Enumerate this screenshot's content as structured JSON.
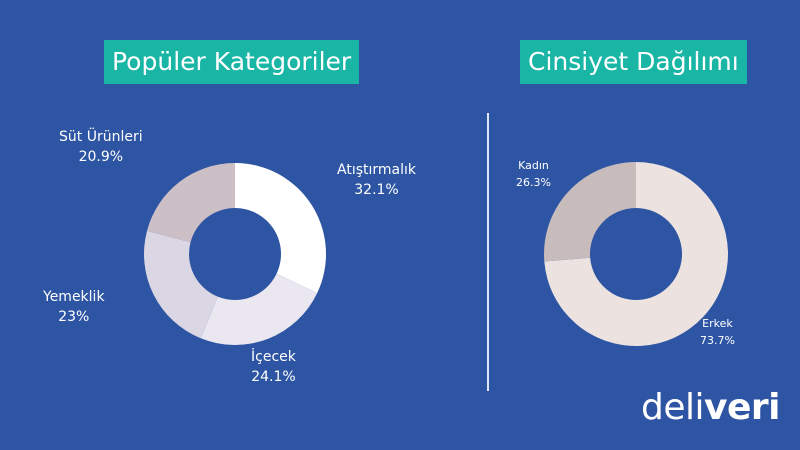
{
  "chart_data": [
    {
      "type": "pie",
      "donut": true,
      "title": "Popüler Kategoriler",
      "slices": [
        {
          "label": "Atıştırmalık",
          "value": 32.1,
          "value_text": "32.1%",
          "color": "#ffffff"
        },
        {
          "label": "İçecek",
          "value": 24.1,
          "value_text": "24.1%",
          "color": "#ebe7f0"
        },
        {
          "label": "Yemeklik",
          "value": 23.0,
          "value_text": "23%",
          "color": "#dad6e3"
        },
        {
          "label": "Süt Ürünleri",
          "value": 20.9,
          "value_text": "20.9%",
          "color": "#cdbfc6"
        }
      ]
    },
    {
      "type": "pie",
      "donut": true,
      "title": "Cinsiyet Dağılımı",
      "slices": [
        {
          "label": "Erkek",
          "value": 73.7,
          "value_text": "73.7%",
          "color": "#ece3e0"
        },
        {
          "label": "Kadın",
          "value": 26.3,
          "value_text": "26.3%",
          "color": "#c7bbbc"
        }
      ]
    }
  ],
  "brand": {
    "logo_light": "deli",
    "logo_bold": "veri"
  },
  "colors": {
    "background": "#2e55a3",
    "title_box": "#19b5a5"
  }
}
